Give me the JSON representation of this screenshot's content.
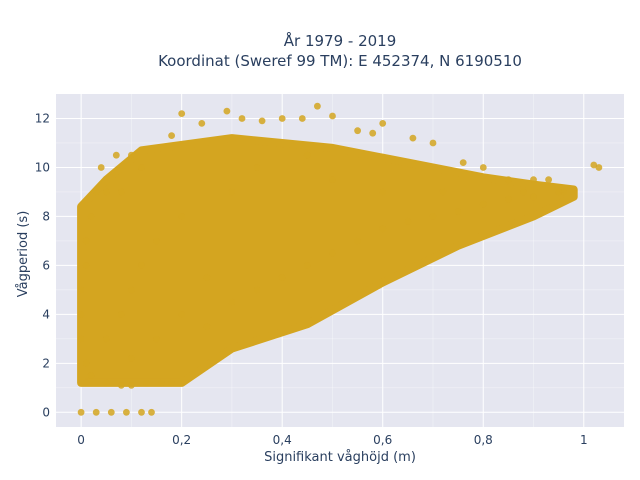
{
  "chart_data": {
    "type": "scatter",
    "title": [
      "År 1979 - 2019",
      "Koordinat (Sweref 99 TM): E 452374, N 6190510"
    ],
    "xlabel": "Signifikant våghöjd (m)",
    "ylabel": "Vågperiod (s)",
    "xlim": [
      -0.05,
      1.08
    ],
    "ylim": [
      -0.6,
      13.0
    ],
    "x_ticks": [
      0,
      0.2,
      0.4,
      0.6,
      0.8,
      1
    ],
    "x_tick_labels": [
      "0",
      "0,2",
      "0,4",
      "0,6",
      "0,8",
      "1"
    ],
    "y_ticks": [
      0,
      2,
      4,
      6,
      8,
      10,
      12
    ],
    "y_tick_labels": [
      "0",
      "2",
      "4",
      "6",
      "8",
      "10",
      "12"
    ],
    "grid": true,
    "legend": "none",
    "colors": {
      "marker": "#d4a520",
      "plot_bg": "#e5e6f0",
      "grid": "#ffffff",
      "text": "#2a3f5f"
    },
    "series": [
      {
        "values_xy": [
          [
            0.0,
            0.0
          ],
          [
            0.03,
            0.0
          ],
          [
            0.06,
            0.0
          ],
          [
            0.09,
            0.0
          ],
          [
            0.12,
            0.0
          ],
          [
            0.14,
            0.0
          ],
          [
            0.01,
            1.2
          ],
          [
            0.02,
            1.5
          ],
          [
            0.05,
            1.2
          ],
          [
            0.08,
            1.1
          ],
          [
            0.1,
            1.1
          ],
          [
            0.13,
            1.2
          ],
          [
            0.16,
            1.2
          ],
          [
            0.18,
            1.2
          ],
          [
            0.01,
            2.0
          ],
          [
            0.0,
            3.0
          ],
          [
            0.0,
            4.0
          ],
          [
            0.0,
            5.0
          ],
          [
            0.01,
            6.0
          ],
          [
            0.01,
            7.0
          ],
          [
            0.02,
            8.0
          ],
          [
            0.03,
            9.0
          ],
          [
            0.05,
            9.0
          ],
          [
            0.08,
            9.0
          ],
          [
            0.04,
            10.0
          ],
          [
            0.07,
            10.5
          ],
          [
            0.1,
            10.5
          ],
          [
            0.12,
            10.0
          ],
          [
            0.18,
            11.3
          ],
          [
            0.2,
            12.2
          ],
          [
            0.24,
            11.8
          ],
          [
            0.29,
            12.3
          ],
          [
            0.32,
            12.0
          ],
          [
            0.36,
            11.9
          ],
          [
            0.4,
            12.0
          ],
          [
            0.44,
            12.0
          ],
          [
            0.47,
            12.5
          ],
          [
            0.5,
            12.1
          ],
          [
            0.55,
            11.5
          ],
          [
            0.58,
            11.4
          ],
          [
            0.6,
            11.8
          ],
          [
            0.66,
            11.2
          ],
          [
            0.7,
            11.0
          ],
          [
            0.76,
            10.2
          ],
          [
            0.8,
            10.0
          ],
          [
            0.85,
            9.5
          ],
          [
            0.88,
            9.0
          ],
          [
            0.9,
            9.5
          ],
          [
            0.93,
            9.5
          ],
          [
            0.96,
            9.0
          ],
          [
            0.98,
            9.0
          ],
          [
            1.02,
            10.1
          ],
          [
            1.03,
            10.0
          ],
          [
            0.05,
            3.0
          ],
          [
            0.08,
            4.0
          ],
          [
            0.1,
            5.0
          ],
          [
            0.1,
            2.2
          ],
          [
            0.12,
            6.0
          ],
          [
            0.15,
            3.0
          ],
          [
            0.15,
            7.0
          ],
          [
            0.2,
            4.0
          ],
          [
            0.2,
            8.0
          ],
          [
            0.25,
            3.5
          ],
          [
            0.25,
            5.5
          ],
          [
            0.3,
            4.5
          ],
          [
            0.3,
            9.0
          ],
          [
            0.35,
            5.0
          ],
          [
            0.35,
            10.0
          ],
          [
            0.4,
            5.5
          ],
          [
            0.45,
            6.0
          ],
          [
            0.45,
            10.5
          ],
          [
            0.5,
            6.5
          ],
          [
            0.5,
            9.5
          ],
          [
            0.55,
            7.0
          ],
          [
            0.6,
            7.5
          ],
          [
            0.6,
            9.0
          ],
          [
            0.65,
            7.8
          ],
          [
            0.7,
            8.0
          ],
          [
            0.72,
            9.0
          ],
          [
            0.75,
            8.2
          ],
          [
            0.8,
            8.5
          ],
          [
            0.85,
            8.7
          ],
          [
            0.9,
            8.8
          ],
          [
            0.95,
            9.0
          ]
        ]
      }
    ]
  }
}
